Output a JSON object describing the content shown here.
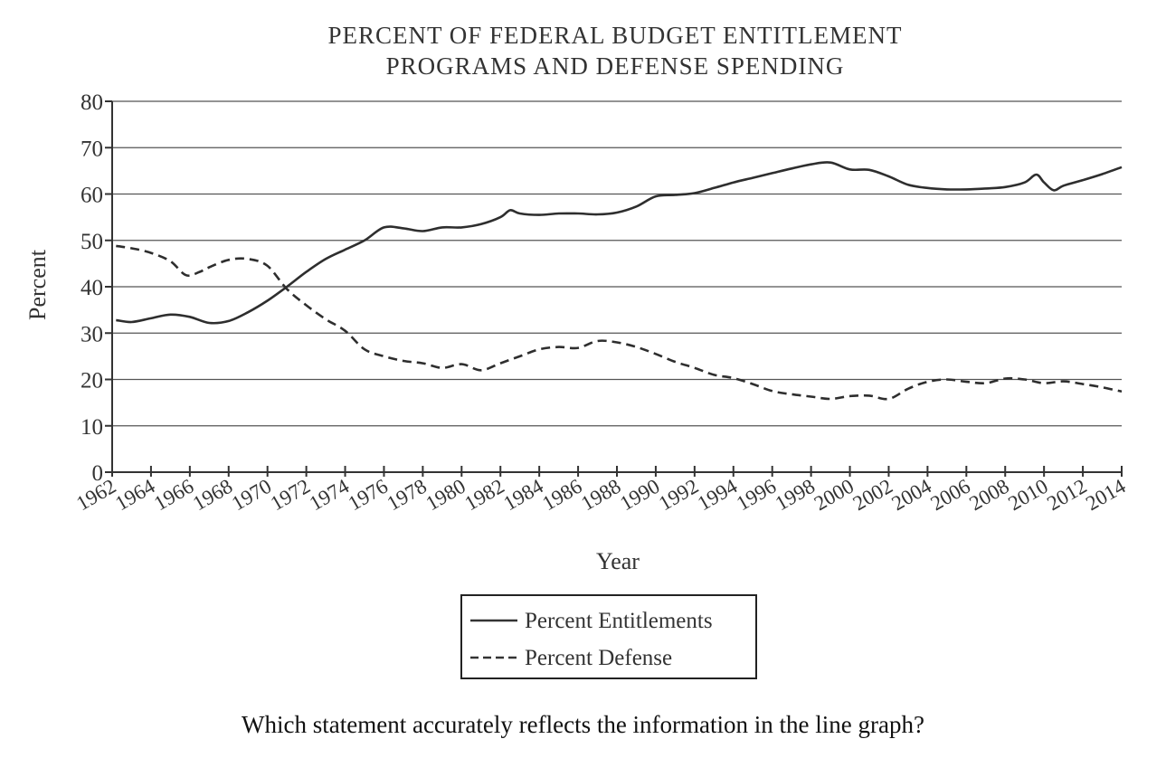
{
  "chart_data": {
    "type": "line",
    "title_lines": [
      "PERCENT OF FEDERAL BUDGET ENTITLEMENT",
      "PROGRAMS AND DEFENSE SPENDING"
    ],
    "xlabel": "Year",
    "ylabel": "Percent",
    "xlim": [
      1962,
      2014
    ],
    "ylim": [
      0,
      80
    ],
    "x_ticks": [
      "1962",
      "1964",
      "1966",
      "1968",
      "1970",
      "1972",
      "1974",
      "1976",
      "1978",
      "1980",
      "1982",
      "1984",
      "1986",
      "1988",
      "1990",
      "1992",
      "1994",
      "1996",
      "1998",
      "2000",
      "2002",
      "2004",
      "2006",
      "2008",
      "2010",
      "2012",
      "2014"
    ],
    "y_ticks": [
      "0",
      "10",
      "20",
      "30",
      "40",
      "50",
      "60",
      "70",
      "80"
    ],
    "grid": "horizontal",
    "legend_position": "bottom-center",
    "series": [
      {
        "name": "Percent Entitlements",
        "style": "solid",
        "points": [
          [
            1962.2,
            32.8
          ],
          [
            1963,
            32.4
          ],
          [
            1964,
            33.2
          ],
          [
            1965,
            34.0
          ],
          [
            1966,
            33.5
          ],
          [
            1967,
            32.2
          ],
          [
            1968,
            32.6
          ],
          [
            1969,
            34.5
          ],
          [
            1970,
            37.0
          ],
          [
            1971,
            40.0
          ],
          [
            1972,
            43.2
          ],
          [
            1973,
            46.0
          ],
          [
            1974,
            48.0
          ],
          [
            1975,
            50.0
          ],
          [
            1976,
            52.8
          ],
          [
            1977,
            52.6
          ],
          [
            1978,
            52.0
          ],
          [
            1979,
            52.8
          ],
          [
            1980,
            52.8
          ],
          [
            1981,
            53.5
          ],
          [
            1982,
            55.0
          ],
          [
            1982.5,
            56.5
          ],
          [
            1983,
            55.8
          ],
          [
            1984,
            55.5
          ],
          [
            1985,
            55.8
          ],
          [
            1986,
            55.8
          ],
          [
            1987,
            55.6
          ],
          [
            1988,
            56.0
          ],
          [
            1989,
            57.3
          ],
          [
            1990,
            59.5
          ],
          [
            1991,
            59.8
          ],
          [
            1992,
            60.2
          ],
          [
            1993,
            61.3
          ],
          [
            1994,
            62.5
          ],
          [
            1995,
            63.5
          ],
          [
            1996,
            64.5
          ],
          [
            1997,
            65.5
          ],
          [
            1998,
            66.4
          ],
          [
            1999,
            66.8
          ],
          [
            2000,
            65.3
          ],
          [
            2001,
            65.2
          ],
          [
            2002,
            63.8
          ],
          [
            2003,
            62.0
          ],
          [
            2004,
            61.3
          ],
          [
            2005,
            61.0
          ],
          [
            2006,
            61.0
          ],
          [
            2007,
            61.2
          ],
          [
            2008,
            61.5
          ],
          [
            2009,
            62.5
          ],
          [
            2009.6,
            64.2
          ],
          [
            2010,
            62.5
          ],
          [
            2010.5,
            60.8
          ],
          [
            2011,
            61.8
          ],
          [
            2012,
            63.0
          ],
          [
            2013,
            64.3
          ],
          [
            2014,
            65.8
          ]
        ]
      },
      {
        "name": "Percent Defense",
        "style": "dashed",
        "points": [
          [
            1962.2,
            48.8
          ],
          [
            1963,
            48.3
          ],
          [
            1964,
            47.3
          ],
          [
            1965,
            45.5
          ],
          [
            1965.8,
            42.5
          ],
          [
            1966.5,
            43.2
          ],
          [
            1967,
            44.2
          ],
          [
            1968,
            45.8
          ],
          [
            1969,
            46.0
          ],
          [
            1970,
            44.5
          ],
          [
            1971,
            39.5
          ],
          [
            1972,
            36.0
          ],
          [
            1973,
            33.0
          ],
          [
            1974,
            30.5
          ],
          [
            1975,
            26.5
          ],
          [
            1976,
            25.0
          ],
          [
            1977,
            24.0
          ],
          [
            1978,
            23.5
          ],
          [
            1979,
            22.5
          ],
          [
            1980,
            23.3
          ],
          [
            1981,
            22.0
          ],
          [
            1982,
            23.5
          ],
          [
            1983,
            25.0
          ],
          [
            1984,
            26.5
          ],
          [
            1985,
            27.0
          ],
          [
            1986,
            26.8
          ],
          [
            1987,
            28.3
          ],
          [
            1988,
            28.0
          ],
          [
            1989,
            27.0
          ],
          [
            1990,
            25.5
          ],
          [
            1991,
            23.8
          ],
          [
            1992,
            22.5
          ],
          [
            1993,
            21.0
          ],
          [
            1994,
            20.3
          ],
          [
            1995,
            19.0
          ],
          [
            1996,
            17.5
          ],
          [
            1997,
            16.8
          ],
          [
            1998,
            16.3
          ],
          [
            1999,
            15.8
          ],
          [
            2000,
            16.4
          ],
          [
            2001,
            16.5
          ],
          [
            2002,
            15.8
          ],
          [
            2003,
            18.0
          ],
          [
            2004,
            19.5
          ],
          [
            2005,
            20.0
          ],
          [
            2006,
            19.5
          ],
          [
            2007,
            19.2
          ],
          [
            2008,
            20.2
          ],
          [
            2009,
            20.0
          ],
          [
            2010,
            19.2
          ],
          [
            2011,
            19.6
          ],
          [
            2012,
            19.0
          ],
          [
            2013,
            18.3
          ],
          [
            2014,
            17.4
          ]
        ]
      }
    ]
  },
  "question": "Which statement accurately reflects the information in the line graph?"
}
